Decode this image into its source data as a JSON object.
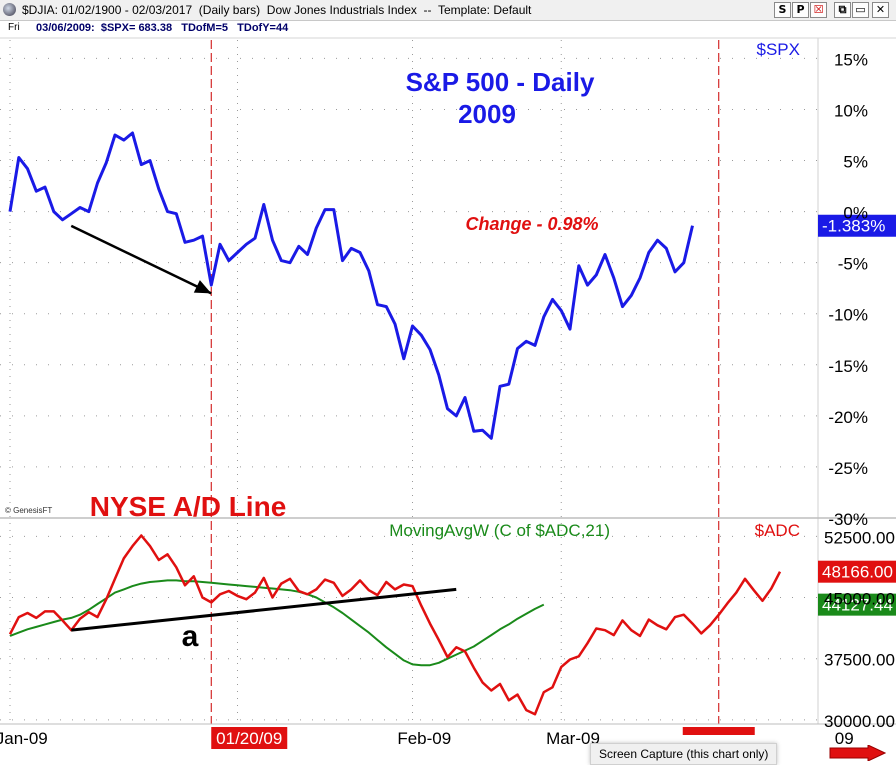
{
  "window": {
    "title": "$DJIA: 01/02/1900 - 02/03/2017  (Daily bars)  Dow Jones Industrials Index  --  Template: Default",
    "buttons": [
      "S",
      "P",
      "☒",
      "⧉",
      "▭",
      "✕"
    ]
  },
  "infobar": {
    "day": "Fri",
    "quote": "03/06/2009:  $SPX= 683.38   TDofM=5   TDofY=44"
  },
  "colors": {
    "spx_line": "#1a1ae6",
    "adline": "#e01010",
    "moving_avg": "#1a8a1a",
    "annotation_red": "#e01010",
    "marker_line": "#cc0000",
    "grid": "#9a9a9a"
  },
  "chart_data": [
    {
      "type": "line",
      "name": "upper-panel",
      "title": "S&P 500 - Daily",
      "subtitle": "2009",
      "series": [
        {
          "name": "$SPX",
          "values": [
            0.0,
            5.3,
            4.2,
            2.0,
            2.4,
            0.0,
            -0.8,
            -0.2,
            0.4,
            0.0,
            2.8,
            4.8,
            7.5,
            7.0,
            7.7,
            4.6,
            5.0,
            2.2,
            0.0,
            -0.2,
            -3.0,
            -2.8,
            -2.4,
            -7.2,
            -3.2,
            -4.8,
            -4.0,
            -3.2,
            -2.6,
            0.7,
            -2.8,
            -4.8,
            -5.0,
            -3.4,
            -4.2,
            -1.6,
            0.2,
            0.2,
            -4.8,
            -3.6,
            -4.0,
            -5.8,
            -9.1,
            -9.3,
            -11.0,
            -14.4,
            -11.2,
            -12.1,
            -13.5,
            -16.0,
            -19.3,
            -20.0,
            -18.2,
            -21.5,
            -21.4,
            -22.2,
            -17.1,
            -16.9,
            -13.4,
            -12.7,
            -13.1,
            -10.3,
            -8.6,
            -9.7,
            -11.5,
            -5.3,
            -7.2,
            -6.2,
            -4.2,
            -6.5,
            -9.3,
            -8.2,
            -6.5,
            -4.0,
            -2.8,
            -3.6,
            -5.9,
            -5.0,
            -1.383
          ]
        }
      ],
      "ylim": [
        -30,
        17
      ],
      "yticks": [
        "15%",
        "10%",
        "5%",
        "0%",
        "-5%",
        "-10%",
        "-15%",
        "-20%",
        "-25%",
        "-30%"
      ],
      "ytick_values": [
        15,
        10,
        5,
        0,
        -5,
        -10,
        -15,
        -20,
        -25,
        -30
      ],
      "last_value_label": "-1.383%",
      "series_label": "$SPX",
      "annotation": "Change - 0.98%",
      "arrow": {
        "from": [
          7,
          -1.4
        ],
        "to": [
          23,
          -8.0
        ]
      },
      "watermark": "© GenesisFT",
      "grid": true
    },
    {
      "type": "line",
      "name": "lower-panel",
      "title": "NYSE A/D Line",
      "series": [
        {
          "name": "$ADC",
          "values": [
            40500,
            42600,
            43100,
            42500,
            43300,
            43300,
            42200,
            41000,
            42400,
            43200,
            42600,
            44800,
            47300,
            49800,
            51300,
            52600,
            51300,
            49600,
            50300,
            48700,
            46500,
            47600,
            45000,
            44400,
            45400,
            45800,
            45200,
            44800,
            45600,
            47400,
            45000,
            46700,
            47300,
            45800,
            45400,
            46000,
            47200,
            46800,
            45200,
            46000,
            47100,
            45900,
            45300,
            46900,
            46000,
            46600,
            46400,
            44000,
            41800,
            39800,
            37700,
            38900,
            38400,
            36400,
            34600,
            33600,
            34400,
            32400,
            33100,
            31200,
            30700,
            33400,
            34000,
            36500,
            37400,
            37800,
            39400,
            41200,
            41000,
            40400,
            42200,
            41000,
            40300,
            42300,
            41600,
            41100,
            42600,
            42900,
            41800,
            40600,
            41600,
            42900,
            44300,
            45600,
            47300,
            45900,
            44600,
            46100,
            48166
          ]
        },
        {
          "name": "MovingAvgW (C of $ADC,21)",
          "values": [
            40300,
            40700,
            41100,
            41400,
            41700,
            42000,
            42300,
            42500,
            42900,
            43500,
            44200,
            44900,
            45600,
            46000,
            46400,
            46700,
            46900,
            47000,
            47100,
            47100,
            47000,
            47000,
            46900,
            46800,
            46700,
            46600,
            46500,
            46400,
            46300,
            46200,
            46100,
            46000,
            45900,
            45700,
            45400,
            45000,
            44400,
            43800,
            43100,
            42300,
            41500,
            40700,
            39800,
            38900,
            38100,
            37300,
            36800,
            36700,
            36700,
            37000,
            37500,
            38000,
            38500,
            39000,
            39700,
            40400,
            41100,
            41700,
            42400,
            43000,
            43600,
            44127
          ]
        }
      ],
      "ylim": [
        29500,
        54500
      ],
      "yticks": [
        "52500.00",
        "45000.00",
        "37500.00",
        "30000.00"
      ],
      "ytick_values": [
        52500,
        45000,
        37500,
        30000
      ],
      "last_value_labels": [
        "48166.00",
        "44127.44"
      ],
      "legend": [
        "MovingAvgW (C of $ADC,21)",
        "$ADC"
      ],
      "trendline_label": "a",
      "trendline": {
        "from": [
          7,
          41000
        ],
        "to": [
          51,
          46000
        ]
      },
      "grid": true
    }
  ],
  "x_axis": {
    "labels": [
      "Jan-09",
      "01/20/09",
      "Feb-09",
      "Mar-09",
      "09"
    ],
    "label_positions": [
      -3,
      23,
      43,
      60,
      91
    ],
    "highlighted_date": "01/20/09",
    "marker_positions": [
      23,
      81
    ]
  },
  "overlay": {
    "screen_capture": "Screen Capture (this chart only)"
  }
}
